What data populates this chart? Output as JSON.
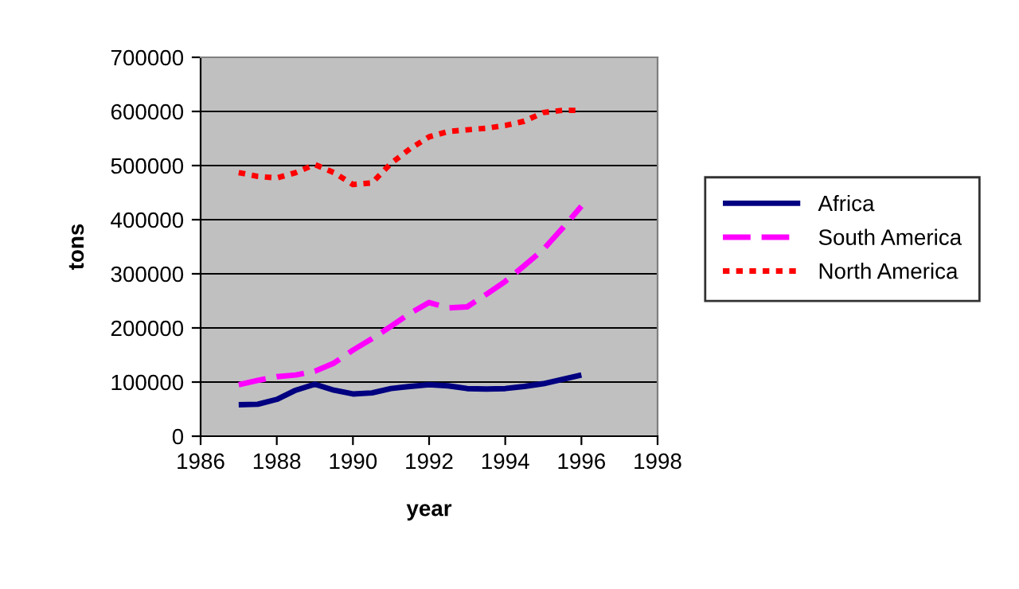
{
  "chart_data": {
    "type": "line",
    "xlabel": "year",
    "ylabel": "tons",
    "x": [
      1987,
      1987.5,
      1988,
      1988.5,
      1989,
      1989.5,
      1990,
      1990.5,
      1991,
      1991.5,
      1992,
      1992.5,
      1993,
      1993.5,
      1994,
      1994.5,
      1995,
      1995.5,
      1996
    ],
    "series": [
      {
        "name": "Africa",
        "color": "#000080",
        "line_style": "solid",
        "values": [
          58000,
          59000,
          68000,
          85000,
          96000,
          85000,
          78000,
          80000,
          88000,
          92000,
          95000,
          93000,
          88000,
          87000,
          88000,
          92000,
          97000,
          105000,
          113000
        ]
      },
      {
        "name": "South America",
        "color": "#ff00ff",
        "line_style": "dashed",
        "values": [
          95000,
          103000,
          110000,
          113000,
          120000,
          135000,
          159000,
          180000,
          203000,
          227000,
          247000,
          237000,
          239000,
          262000,
          286000,
          315000,
          345000,
          384000,
          425000
        ]
      },
      {
        "name": "North America",
        "color": "#ff0000",
        "line_style": "dotted",
        "values": [
          487000,
          480000,
          477000,
          487000,
          502000,
          487000,
          465000,
          468000,
          504000,
          531000,
          553000,
          563000,
          566000,
          569000,
          574000,
          582000,
          598000,
          602000,
          602000
        ]
      }
    ],
    "xlim": [
      1986,
      1998
    ],
    "xticks": [
      1986,
      1988,
      1990,
      1992,
      1994,
      1996,
      1998
    ],
    "ylim": [
      0,
      700000
    ],
    "yticks": [
      0,
      100000,
      200000,
      300000,
      400000,
      500000,
      600000,
      700000
    ],
    "grid": "y",
    "legend": "right",
    "marker": "none"
  }
}
